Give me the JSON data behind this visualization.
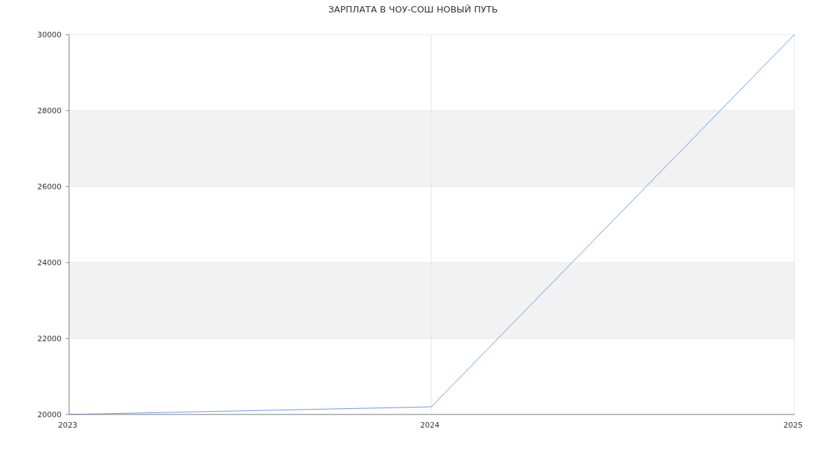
{
  "chart_data": {
    "type": "line",
    "title": "ЗАРПЛАТА В ЧОУ-СОШ НОВЫЙ ПУТЬ",
    "x": [
      "2023",
      "2024",
      "2025"
    ],
    "series": [
      {
        "color": "#6495ed",
        "values": [
          20000,
          20200,
          30000
        ]
      }
    ],
    "xlim": [
      "2023",
      "2025"
    ],
    "xticks": [
      "2023",
      "2024",
      "2025"
    ],
    "ylim": [
      20000,
      30000
    ],
    "yticks": [
      20000,
      22000,
      24000,
      26000,
      28000,
      30000
    ],
    "grid": true,
    "bands": [
      {
        "axis": "y",
        "from": 22000,
        "to": 24000,
        "color": "#f2f2f2"
      },
      {
        "axis": "y",
        "from": 26000,
        "to": 28000,
        "color": "#f2f2f2"
      }
    ]
  }
}
